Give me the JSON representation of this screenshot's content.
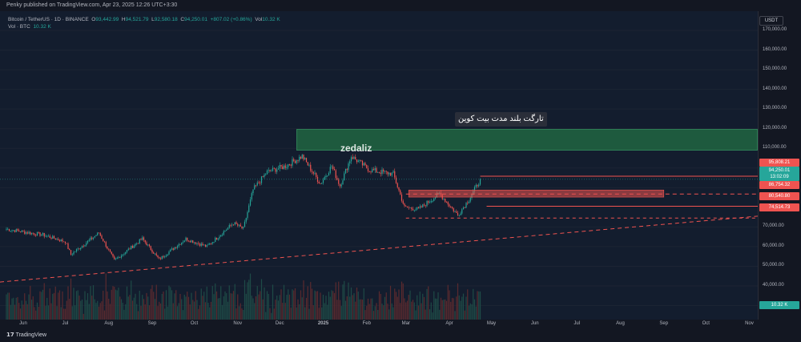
{
  "header": {
    "publisher_line": "Penky published on TradingView.com, Apr 23, 2025 12:26 UTC+3:30"
  },
  "legend": {
    "symbol": "Bitcoin / TetherUS · 1D · BINANCE",
    "open_label": "O",
    "open": "93,442.99",
    "high_label": "H",
    "high": "94,521.79",
    "low_label": "L",
    "low": "92,580.18",
    "close_label": "C",
    "close": "94,250.01",
    "change": "+807.02 (+0.86%)",
    "vol_label": "Vol",
    "vol": "10.32 K",
    "vol_line_label": "Vol · BTC",
    "vol_line_value": "10.32 K"
  },
  "currency_button": "USDT",
  "price_ticks": [
    "170,000.00",
    "160,000.00",
    "150,000.00",
    "140,000.00",
    "130,000.00",
    "120,000.00",
    "110,000.00",
    "100,000.00",
    "90,000.00",
    "70,000.00",
    "60,000.00",
    "50,000.00",
    "40,000.00",
    "30,000.00"
  ],
  "price_tags": {
    "resistance": "95,808.21",
    "last_price": "94,250.01",
    "countdown": "13:02:09",
    "level_1": "86,754.32",
    "level_2": "80,540.80",
    "level_3": "74,514.73",
    "volume": "10.32 K"
  },
  "time_labels": [
    "Jun",
    "Jul",
    "Aug",
    "Sep",
    "Oct",
    "Nov",
    "Dec",
    "2025",
    "Feb",
    "Mar",
    "Apr",
    "May",
    "Jun",
    "Jul",
    "Aug",
    "Sep",
    "Oct",
    "Nov"
  ],
  "annotation": {
    "target_label": "تارگت بلند مدت بیت کوین",
    "watermark": "zedaliz"
  },
  "footer": {
    "brand": "TradingView"
  },
  "colors": {
    "up": "#26a69a",
    "down": "#ef5350",
    "target_box": "#1e5a3e"
  },
  "chart_data": {
    "type": "candlestick",
    "symbol": "Bitcoin / TetherUS",
    "interval": "1D",
    "exchange": "BINANCE",
    "last_close": 94250.01,
    "ylim": [
      40000,
      170000
    ],
    "price_path": [
      [
        "2024-05-20",
        69000
      ],
      [
        "2024-06-01",
        67500
      ],
      [
        "2024-06-15",
        66000
      ],
      [
        "2024-07-01",
        62500
      ],
      [
        "2024-07-05",
        56000
      ],
      [
        "2024-07-25",
        67000
      ],
      [
        "2024-08-05",
        53000
      ],
      [
        "2024-08-25",
        64000
      ],
      [
        "2024-09-06",
        53500
      ],
      [
        "2024-09-25",
        64000
      ],
      [
        "2024-10-10",
        60000
      ],
      [
        "2024-10-29",
        72000
      ],
      [
        "2024-11-05",
        69000
      ],
      [
        "2024-11-12",
        89000
      ],
      [
        "2024-11-22",
        98000
      ],
      [
        "2024-12-05",
        101000
      ],
      [
        "2024-12-17",
        106000
      ],
      [
        "2024-12-30",
        92000
      ],
      [
        "2025-01-07",
        101000
      ],
      [
        "2025-01-13",
        91000
      ],
      [
        "2025-01-21",
        106000
      ],
      [
        "2025-02-03",
        99000
      ],
      [
        "2025-02-20",
        97000
      ],
      [
        "2025-02-28",
        80000
      ],
      [
        "2025-03-10",
        79000
      ],
      [
        "2025-03-25",
        87000
      ],
      [
        "2025-04-07",
        76000
      ],
      [
        "2025-04-15",
        84000
      ],
      [
        "2025-04-23",
        94250
      ]
    ],
    "horizontal_levels": [
      95808.21,
      86754.32,
      80540.8,
      74514.73
    ],
    "target_zone": [
      109000,
      120000
    ],
    "target_zone_label": "تارگت بلند مدت بیت کوین"
  }
}
